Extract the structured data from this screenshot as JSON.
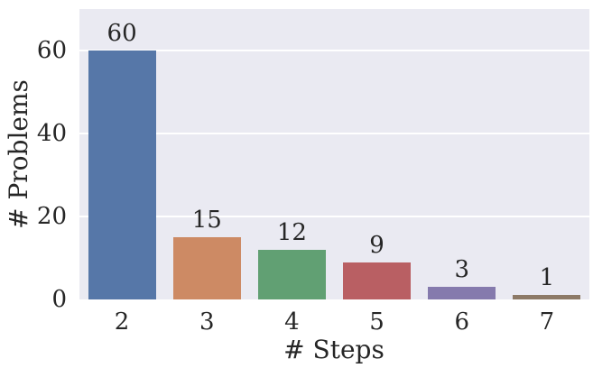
{
  "chart_data": {
    "type": "bar",
    "title": "",
    "xlabel": "# Steps",
    "ylabel": "# Problems",
    "categories": [
      "2",
      "3",
      "4",
      "5",
      "6",
      "7"
    ],
    "values": [
      60,
      15,
      12,
      9,
      3,
      1
    ],
    "bar_labels": [
      "60",
      "15",
      "12",
      "9",
      "3",
      "1"
    ],
    "yticks": [
      0,
      20,
      40,
      60
    ],
    "ylim": [
      0,
      70
    ],
    "grid": true,
    "legend": false,
    "bar_colors": [
      "#5677a8",
      "#cd8a64",
      "#61a073",
      "#b95f63",
      "#857aad",
      "#8d7a67"
    ],
    "plot_background_color": "#eaeaf2",
    "gridline_color": "#ffffff",
    "text_color": "#262626"
  }
}
